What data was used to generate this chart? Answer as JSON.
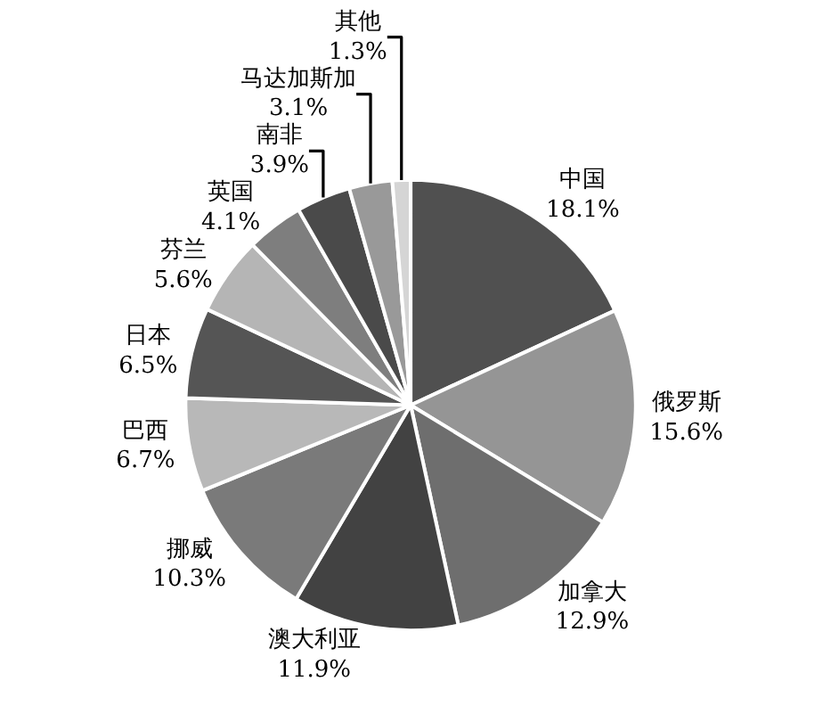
{
  "chart_data": {
    "type": "pie",
    "categories": [
      "中国",
      "俄罗斯",
      "加拿大",
      "澳大利亚",
      "挪威",
      "巴西",
      "日本",
      "芬兰",
      "英国",
      "南非",
      "马达加斯加",
      "其他"
    ],
    "values": [
      18.1,
      15.6,
      12.9,
      11.9,
      10.3,
      6.7,
      6.5,
      5.6,
      4.1,
      3.9,
      3.1,
      1.3
    ],
    "value_labels": [
      "18.1%",
      "15.6%",
      "12.9%",
      "11.9%",
      "10.3%",
      "6.7%",
      "6.5%",
      "5.6%",
      "4.1%",
      "3.9%",
      "3.1%",
      "1.3%"
    ],
    "colors": [
      "#505050",
      "#959595",
      "#6e6e6e",
      "#424242",
      "#7a7a7a",
      "#b8b8b8",
      "#555555",
      "#b5b5b5",
      "#7e7e7e",
      "#4a4a4a",
      "#999999",
      "#d5d5d5"
    ],
    "legend": false
  }
}
